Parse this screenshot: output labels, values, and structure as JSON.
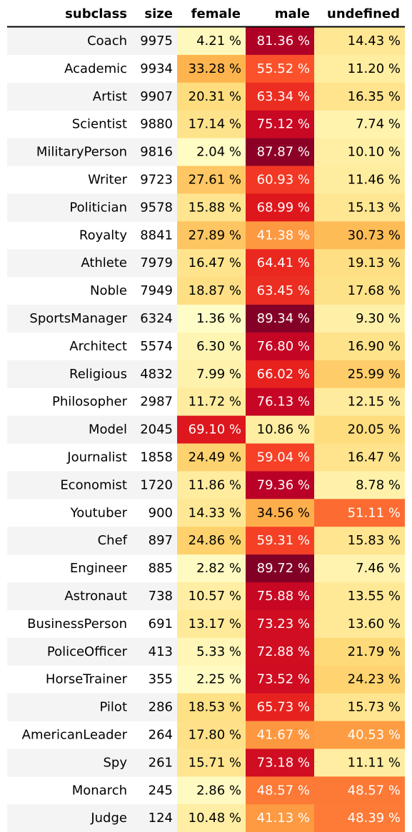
{
  "chart_data": {
    "type": "table",
    "columns": [
      "subclass",
      "size",
      "female",
      "male",
      "undefined"
    ],
    "rows": [
      {
        "subclass": "Coach",
        "size": 9975,
        "female": "4.21 %",
        "male": "81.36 %",
        "undefined": "14.43 %"
      },
      {
        "subclass": "Academic",
        "size": 9934,
        "female": "33.28 %",
        "male": "55.52 %",
        "undefined": "11.20 %"
      },
      {
        "subclass": "Artist",
        "size": 9907,
        "female": "20.31 %",
        "male": "63.34 %",
        "undefined": "16.35 %"
      },
      {
        "subclass": "Scientist",
        "size": 9880,
        "female": "17.14 %",
        "male": "75.12 %",
        "undefined": "7.74 %"
      },
      {
        "subclass": "MilitaryPerson",
        "size": 9816,
        "female": "2.04 %",
        "male": "87.87 %",
        "undefined": "10.10 %"
      },
      {
        "subclass": "Writer",
        "size": 9723,
        "female": "27.61 %",
        "male": "60.93 %",
        "undefined": "11.46 %"
      },
      {
        "subclass": "Politician",
        "size": 9578,
        "female": "15.88 %",
        "male": "68.99 %",
        "undefined": "15.13 %"
      },
      {
        "subclass": "Royalty",
        "size": 8841,
        "female": "27.89 %",
        "male": "41.38 %",
        "undefined": "30.73 %"
      },
      {
        "subclass": "Athlete",
        "size": 7979,
        "female": "16.47 %",
        "male": "64.41 %",
        "undefined": "19.13 %"
      },
      {
        "subclass": "Noble",
        "size": 7949,
        "female": "18.87 %",
        "male": "63.45 %",
        "undefined": "17.68 %"
      },
      {
        "subclass": "SportsManager",
        "size": 6324,
        "female": "1.36 %",
        "male": "89.34 %",
        "undefined": "9.30 %"
      },
      {
        "subclass": "Architect",
        "size": 5574,
        "female": "6.30 %",
        "male": "76.80 %",
        "undefined": "16.90 %"
      },
      {
        "subclass": "Religious",
        "size": 4832,
        "female": "7.99 %",
        "male": "66.02 %",
        "undefined": "25.99 %"
      },
      {
        "subclass": "Philosopher",
        "size": 2987,
        "female": "11.72 %",
        "male": "76.13 %",
        "undefined": "12.15 %"
      },
      {
        "subclass": "Model",
        "size": 2045,
        "female": "69.10 %",
        "male": "10.86 %",
        "undefined": "20.05 %"
      },
      {
        "subclass": "Journalist",
        "size": 1858,
        "female": "24.49 %",
        "male": "59.04 %",
        "undefined": "16.47 %"
      },
      {
        "subclass": "Economist",
        "size": 1720,
        "female": "11.86 %",
        "male": "79.36 %",
        "undefined": "8.78 %"
      },
      {
        "subclass": "Youtuber",
        "size": 900,
        "female": "14.33 %",
        "male": "34.56 %",
        "undefined": "51.11 %"
      },
      {
        "subclass": "Chef",
        "size": 897,
        "female": "24.86 %",
        "male": "59.31 %",
        "undefined": "15.83 %"
      },
      {
        "subclass": "Engineer",
        "size": 885,
        "female": "2.82 %",
        "male": "89.72 %",
        "undefined": "7.46 %"
      },
      {
        "subclass": "Astronaut",
        "size": 738,
        "female": "10.57 %",
        "male": "75.88 %",
        "undefined": "13.55 %"
      },
      {
        "subclass": "BusinessPerson",
        "size": 691,
        "female": "13.17 %",
        "male": "73.23 %",
        "undefined": "13.60 %"
      },
      {
        "subclass": "PoliceOfficer",
        "size": 413,
        "female": "5.33 %",
        "male": "72.88 %",
        "undefined": "21.79 %"
      },
      {
        "subclass": "HorseTrainer",
        "size": 355,
        "female": "2.25 %",
        "male": "73.52 %",
        "undefined": "24.23 %"
      },
      {
        "subclass": "Pilot",
        "size": 286,
        "female": "18.53 %",
        "male": "65.73 %",
        "undefined": "15.73 %"
      },
      {
        "subclass": "AmericanLeader",
        "size": 264,
        "female": "17.80 %",
        "male": "41.67 %",
        "undefined": "40.53 %"
      },
      {
        "subclass": "Spy",
        "size": 261,
        "female": "15.71 %",
        "male": "73.18 %",
        "undefined": "11.11 %"
      },
      {
        "subclass": "Monarch",
        "size": 245,
        "female": "2.86 %",
        "male": "48.57 %",
        "undefined": "48.57 %"
      },
      {
        "subclass": "Judge",
        "size": 124,
        "female": "10.48 %",
        "male": "41.13 %",
        "undefined": "48.39 %"
      }
    ],
    "color_scale": {
      "name": "YlOrRd",
      "range": [
        0,
        90
      ],
      "stops": [
        "#ffffcc",
        "#ffeda0",
        "#fed976",
        "#feb24c",
        "#fd8d3c",
        "#fc4e2a",
        "#e31a1c",
        "#bd0026",
        "#800026"
      ]
    },
    "styling": {
      "header_rule_color": "#000000",
      "stripe_color": "#f4f4f4",
      "text_dark": "#000000",
      "text_light": "#ffffff"
    }
  }
}
